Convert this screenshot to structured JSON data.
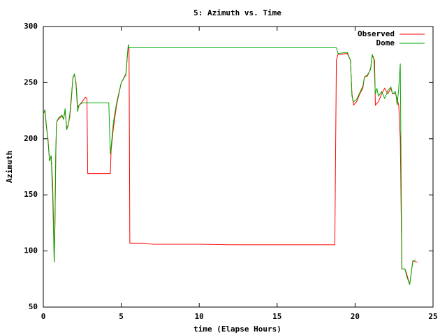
{
  "chart_data": {
    "type": "line",
    "title": "5: Azimuth vs. Time",
    "xlabel": "time (Elapse Hours)",
    "ylabel": "Azimuth",
    "xlim": [
      0,
      25
    ],
    "xticks": [
      0,
      5,
      10,
      15,
      20,
      25
    ],
    "ylim": [
      50,
      300
    ],
    "yticks": [
      50,
      100,
      150,
      200,
      250,
      300
    ],
    "legend": "top-right",
    "series": [
      {
        "name": "Observed",
        "color": "#ff0000",
        "x": [
          0,
          0.1,
          0.2,
          0.3,
          0.35,
          0.4,
          0.5,
          0.6,
          0.65,
          0.7,
          0.75,
          0.8,
          0.85,
          1.0,
          1.2,
          1.3,
          1.4,
          1.5,
          1.6,
          1.7,
          1.8,
          1.9,
          2.0,
          2.1,
          2.2,
          2.3,
          2.5,
          2.7,
          2.8,
          2.85,
          4.3,
          4.35,
          4.5,
          4.7,
          5.0,
          5.3,
          5.4,
          5.45,
          5.5,
          5.55,
          6.5,
          7,
          10,
          12,
          18.7,
          18.8,
          18.9,
          19.5,
          19.7,
          19.8,
          19.9,
          20.1,
          20.3,
          20.5,
          20.6,
          20.8,
          21.0,
          21.1,
          21.25,
          21.3,
          21.5,
          21.7,
          21.9,
          22.1,
          22.3,
          22.4,
          22.6,
          22.7,
          22.8,
          22.9,
          23.0,
          23.2,
          23.3,
          23.5,
          23.6,
          23.7,
          24.0
        ],
        "values": [
          222,
          225,
          210,
          200,
          190,
          180,
          185,
          160,
          130,
          90,
          125,
          185,
          215,
          218,
          220,
          218,
          225,
          210,
          212,
          220,
          235,
          255,
          257,
          250,
          228,
          230,
          233,
          237,
          236,
          169,
          169,
          190,
          210,
          230,
          250,
          257,
          275,
          282,
          280,
          107,
          107,
          106,
          106,
          105.5,
          105.5,
          270,
          275,
          276,
          270,
          240,
          230,
          233,
          240,
          245,
          255,
          256,
          263,
          274,
          270,
          230,
          233,
          240,
          245,
          240,
          245,
          240,
          240,
          235,
          230,
          200,
          84,
          84,
          80,
          70,
          80,
          91,
          90
        ]
      },
      {
        "name": "Dome",
        "color": "#00aa00",
        "x": [
          0,
          0.1,
          0.2,
          0.3,
          0.4,
          0.5,
          0.6,
          0.7,
          0.75,
          0.8,
          0.85,
          1.0,
          1.2,
          1.3,
          1.4,
          1.5,
          1.6,
          1.7,
          1.8,
          1.9,
          2.0,
          2.1,
          2.2,
          2.3,
          2.5,
          2.6,
          4.2,
          4.3,
          4.4,
          4.5,
          4.7,
          5.0,
          5.3,
          5.4,
          5.45,
          5.5,
          18.8,
          18.9,
          19.5,
          19.7,
          19.8,
          19.9,
          20.1,
          20.3,
          20.5,
          20.6,
          20.8,
          21.0,
          21.1,
          21.2,
          21.3,
          21.4,
          21.5,
          21.7,
          21.9,
          22.1,
          22.3,
          22.4,
          22.6,
          22.7,
          22.8,
          22.9,
          23.0,
          23.2,
          23.3,
          23.5,
          23.6,
          23.7,
          23.9
        ],
        "values": [
          222,
          226,
          212,
          198,
          180,
          185,
          150,
          90,
          130,
          190,
          215,
          219,
          221,
          217,
          227,
          208,
          212,
          222,
          238,
          254,
          258,
          248,
          224,
          230,
          232,
          232,
          232,
          186,
          200,
          215,
          232,
          250,
          258,
          276,
          284,
          281,
          281,
          276,
          277,
          270,
          238,
          233,
          235,
          241,
          247,
          255,
          257,
          262,
          275,
          272,
          240,
          245,
          238,
          242,
          236,
          243,
          246,
          240,
          242,
          230,
          245,
          267,
          84,
          84,
          78,
          70,
          80,
          91,
          92
        ]
      }
    ]
  }
}
